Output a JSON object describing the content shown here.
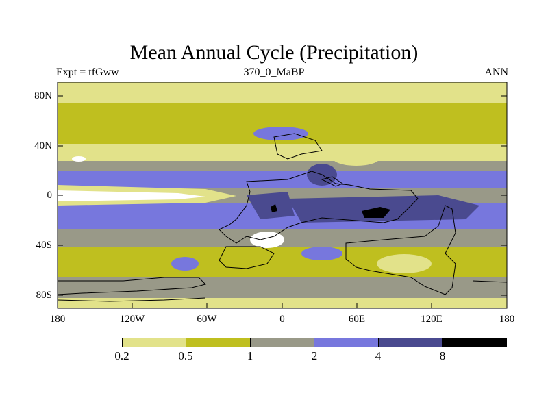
{
  "title": "Mean Annual Cycle (Precipitation)",
  "subtitle_left": "Expt = tfGww",
  "subtitle_center": "370_0_MaBP",
  "subtitle_right": "ANN",
  "y_ticks": [
    "80N",
    "40N",
    "0",
    "40S",
    "80S"
  ],
  "x_ticks": [
    "180",
    "120W",
    "60W",
    "0",
    "60E",
    "120E",
    "180"
  ],
  "colorbar": {
    "colors": [
      "#ffffff",
      "#e2e28a",
      "#bfbf1f",
      "#999988",
      "#7777dd",
      "#4a4a8f",
      "#000000"
    ],
    "labels": [
      "0.2",
      "0.5",
      "1",
      "2",
      "4",
      "8"
    ]
  },
  "icons": [
    "continent-outline-icon"
  ]
}
